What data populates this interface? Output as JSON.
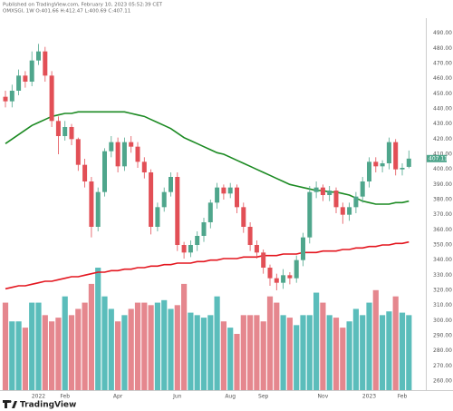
{
  "header": {
    "published": "Published on TradingView.com, February 10, 2023 05:52:39 CET",
    "symbol_line": "OMXSGI, 1W O:401.66 H:412.47 L:400.69 C:407.11"
  },
  "footer": {
    "logo": "TradingView"
  },
  "chart_data": {
    "type": "candlestick",
    "categories": [
      null,
      null,
      null,
      null,
      null,
      "2022",
      null,
      null,
      null,
      "Feb",
      null,
      null,
      null,
      null,
      null,
      null,
      null,
      "Apr",
      null,
      null,
      null,
      null,
      null,
      null,
      null,
      null,
      "Jun",
      null,
      null,
      null,
      null,
      null,
      null,
      null,
      "Aug",
      null,
      null,
      null,
      null,
      "Sep",
      null,
      null,
      null,
      null,
      null,
      null,
      null,
      null,
      "Nov",
      null,
      null,
      null,
      null,
      null,
      null,
      "2023",
      null,
      null,
      null,
      null,
      "Feb",
      null
    ],
    "open": [
      448,
      445,
      452,
      462,
      458,
      472,
      478,
      462,
      432,
      422,
      428,
      420,
      403,
      392,
      362,
      385,
      412,
      418,
      402,
      418,
      415,
      405,
      398,
      362,
      375,
      385,
      395,
      350,
      345,
      350,
      356,
      365,
      378,
      388,
      384,
      388,
      375,
      362,
      350,
      345,
      335,
      328,
      325,
      330,
      328,
      340,
      355,
      385,
      388,
      383,
      386,
      375,
      370,
      375,
      382,
      392,
      405,
      402,
      404,
      418,
      400,
      401.66
    ],
    "high": [
      452,
      456,
      466,
      465,
      478,
      483,
      481,
      465,
      435,
      432,
      430,
      421,
      407,
      395,
      388,
      414,
      422,
      421,
      421,
      422,
      418,
      408,
      400,
      378,
      388,
      398,
      398,
      352,
      353,
      359,
      368,
      380,
      391,
      390,
      391,
      390,
      378,
      365,
      353,
      347,
      337,
      331,
      334,
      332,
      343,
      358,
      389,
      392,
      390,
      389,
      388,
      378,
      378,
      385,
      395,
      408,
      408,
      406,
      421,
      420,
      404,
      412.47
    ],
    "low": [
      441,
      441,
      449,
      454,
      455,
      469,
      458,
      428,
      410,
      419,
      416,
      399,
      388,
      355,
      359,
      382,
      408,
      398,
      399,
      411,
      401,
      394,
      357,
      359,
      372,
      382,
      346,
      341,
      342,
      346,
      352,
      361,
      374,
      380,
      381,
      371,
      358,
      346,
      341,
      331,
      323,
      320,
      321,
      324,
      325,
      336,
      351,
      381,
      379,
      379,
      371,
      364,
      366,
      371,
      378,
      388,
      398,
      398,
      400,
      396,
      396,
      400.69
    ],
    "close": [
      445,
      452,
      462,
      458,
      472,
      478,
      462,
      432,
      422,
      428,
      420,
      403,
      392,
      362,
      385,
      412,
      418,
      402,
      418,
      415,
      405,
      398,
      362,
      375,
      385,
      395,
      350,
      345,
      350,
      356,
      365,
      378,
      388,
      384,
      388,
      375,
      362,
      350,
      345,
      335,
      328,
      325,
      330,
      328,
      340,
      355,
      385,
      388,
      383,
      386,
      375,
      370,
      375,
      382,
      392,
      405,
      402,
      404,
      418,
      400,
      401,
      407.11
    ],
    "volume": [
      70,
      55,
      55,
      50,
      70,
      70,
      60,
      55,
      58,
      75,
      60,
      65,
      70,
      85,
      98,
      75,
      65,
      55,
      60,
      65,
      70,
      70,
      68,
      70,
      72,
      65,
      68,
      85,
      62,
      60,
      58,
      60,
      75,
      55,
      50,
      45,
      60,
      60,
      60,
      55,
      75,
      70,
      60,
      58,
      52,
      60,
      60,
      78,
      70,
      60,
      58,
      50,
      55,
      65,
      60,
      70,
      80,
      60,
      63,
      75,
      62,
      60
    ],
    "up_color": "#4fa68c",
    "down_color": "#e24f56",
    "volume_up_color": "#5bbdbb",
    "volume_down_color": "#e5878e",
    "overlays": [
      {
        "color": "#1b8a22",
        "values": [
          417,
          420,
          423,
          426,
          429,
          431,
          433,
          435,
          436,
          437,
          437,
          438,
          438,
          438,
          438,
          438,
          438,
          438,
          438,
          437,
          436,
          435,
          433,
          431,
          429,
          427,
          424,
          421,
          419,
          417,
          415,
          413,
          411,
          410,
          408,
          406,
          404,
          402,
          400,
          398,
          396,
          394,
          392,
          390,
          389,
          388,
          387,
          386,
          386,
          385,
          385,
          384,
          383,
          381,
          379,
          378,
          377,
          377,
          377,
          378,
          378,
          379
        ]
      },
      {
        "color": "#e3161f",
        "values": [
          321,
          322,
          323,
          323,
          324,
          325,
          326,
          326,
          327,
          328,
          329,
          329,
          330,
          331,
          332,
          332,
          333,
          333,
          334,
          334,
          335,
          335,
          336,
          336,
          337,
          337,
          338,
          338,
          338,
          339,
          339,
          340,
          340,
          341,
          341,
          341,
          342,
          342,
          342,
          343,
          343,
          343,
          344,
          344,
          344,
          345,
          345,
          345,
          346,
          346,
          346,
          347,
          347,
          348,
          348,
          349,
          349,
          350,
          350,
          351,
          351,
          352
        ]
      }
    ],
    "ylim": [
      254,
      500
    ],
    "yticks": [
      {
        "value": 260,
        "label": "260.00"
      },
      {
        "value": 270,
        "label": "270.00"
      },
      {
        "value": 280,
        "label": "280.00"
      },
      {
        "value": 290,
        "label": "290.00"
      },
      {
        "value": 300,
        "label": "300.00"
      },
      {
        "value": 310,
        "label": "310.00"
      },
      {
        "value": 320,
        "label": "320.00"
      },
      {
        "value": 330,
        "label": "330.00"
      },
      {
        "value": 340,
        "label": "340.00"
      },
      {
        "value": 350,
        "label": "350.00"
      },
      {
        "value": 360,
        "label": "360.00"
      },
      {
        "value": 370,
        "label": "370.00"
      },
      {
        "value": 380,
        "label": "380.00"
      },
      {
        "value": 390,
        "label": "390.00"
      },
      {
        "value": 400,
        "label": "400.00"
      },
      {
        "value": 410,
        "label": "410.00"
      },
      {
        "value": 420,
        "label": "420.00"
      },
      {
        "value": 430,
        "label": "430.00"
      },
      {
        "value": 440,
        "label": "440.00"
      },
      {
        "value": 450,
        "label": "450.00"
      },
      {
        "value": 460,
        "label": "460.00"
      },
      {
        "value": 470,
        "label": "470.00"
      },
      {
        "value": 480,
        "label": "480.00"
      },
      {
        "value": 490,
        "label": "490.00"
      }
    ]
  }
}
